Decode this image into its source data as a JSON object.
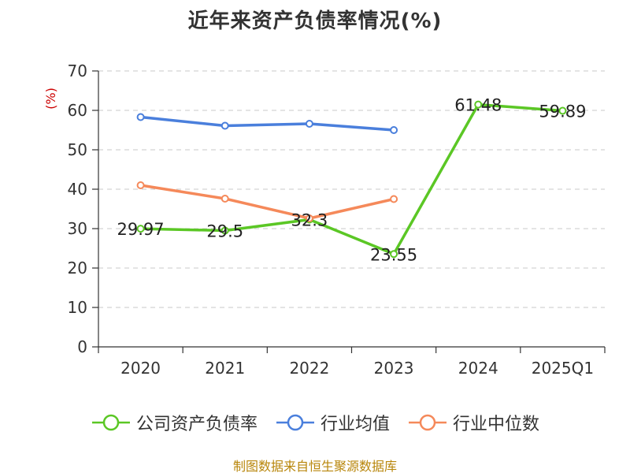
{
  "chart_data": {
    "type": "line",
    "title": "近年来资产负债率情况(%)",
    "ylabel": "(%)",
    "categories": [
      "2020",
      "2021",
      "2022",
      "2023",
      "2024",
      "2025Q1"
    ],
    "ylim": [
      0,
      70
    ],
    "yticks": [
      0,
      10,
      20,
      30,
      40,
      50,
      60,
      70
    ],
    "grid": true,
    "legend_position": "bottom",
    "series": [
      {
        "name": "公司资产负债率",
        "color": "#5bc725",
        "values": [
          29.97,
          29.5,
          32.3,
          23.55,
          61.48,
          59.89
        ],
        "labels": [
          "29.97",
          "29.5",
          "32.3",
          "23.55",
          "61.48",
          "59.89"
        ]
      },
      {
        "name": "行业均值",
        "color": "#4a7fdc",
        "values": [
          58.3,
          56.1,
          56.6,
          55.0,
          null,
          null
        ]
      },
      {
        "name": "行业中位数",
        "color": "#f5895a",
        "values": [
          41.0,
          37.6,
          32.6,
          37.5,
          null,
          null
        ]
      }
    ]
  },
  "source": "制图数据来自恒生聚源数据库"
}
